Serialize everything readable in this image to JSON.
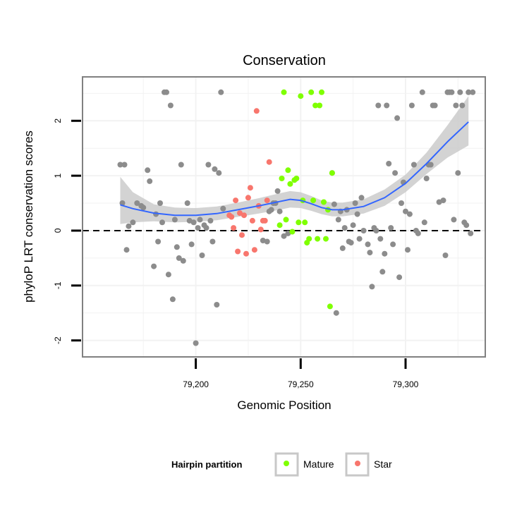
{
  "chart_data": {
    "type": "scatter",
    "title": "Conservation",
    "xlabel": "Genomic Position",
    "ylabel": "phyloP LRT conservation scores",
    "xlim": [
      79146,
      79338
    ],
    "ylim": [
      -2.3,
      2.8
    ],
    "xticks": [
      79200,
      79250,
      79300
    ],
    "xtick_labels": [
      "79,200",
      "79,250",
      "79,300"
    ],
    "yticks": [
      -2,
      -1,
      0,
      1,
      2
    ],
    "ytick_labels": [
      "-2",
      "-1",
      "0",
      "1",
      "2"
    ],
    "grid": true,
    "reference_line": {
      "y": 0,
      "style": "dashed"
    },
    "legend": {
      "title": "Hairpin partition",
      "position": "bottom",
      "entries": [
        {
          "name": "Mature",
          "color": "#7FFF00"
        },
        {
          "name": "Star",
          "color": "#F8766D"
        }
      ]
    },
    "colors": {
      "other": "#8C8C8C",
      "mature": "#7FFF00",
      "star": "#F8766D",
      "smooth": "#3366FF",
      "ribbon": "#C8C8C8",
      "panel_border": "#808080",
      "grid": "#F2F2F2"
    },
    "series": [
      {
        "group": "other",
        "x": [
          79164,
          79165,
          79166,
          79167,
          79168,
          79170,
          79172,
          79174,
          79175,
          79177,
          79178,
          79180,
          79181,
          79182,
          79183,
          79184,
          79185,
          79186,
          79187,
          79188,
          79189,
          79190,
          79191,
          79192,
          79193,
          79194,
          79196,
          79197,
          79198,
          79199,
          79200,
          79201,
          79202,
          79203,
          79204,
          79205,
          79206,
          79207,
          79208,
          79209,
          79210,
          79211,
          79212,
          79213,
          79232,
          79234,
          79235,
          79236,
          79237,
          79238,
          79239,
          79240,
          79242,
          79244,
          79265,
          79266,
          79267,
          79268,
          79269,
          79270,
          79271,
          79272,
          79273,
          79274,
          79275,
          79276,
          79277,
          79278,
          79279,
          79280,
          79282,
          79283,
          79284,
          79285,
          79286,
          79287,
          79288,
          79289,
          79290,
          79291,
          79292,
          79293,
          79294,
          79295,
          79296,
          79297,
          79298,
          79299,
          79300,
          79301,
          79302,
          79303,
          79304,
          79305,
          79306,
          79308,
          79309,
          79310,
          79311,
          79312,
          79313,
          79314,
          79316,
          79318,
          79319,
          79320,
          79321,
          79322,
          79323,
          79324,
          79325,
          79326,
          79327,
          79328,
          79329,
          79330,
          79331,
          79332
        ],
        "y": [
          1.2,
          0.5,
          1.2,
          -0.35,
          0.08,
          0.15,
          0.5,
          0.45,
          0.42,
          1.1,
          0.9,
          -0.65,
          0.3,
          -0.2,
          0.5,
          0.15,
          2.52,
          2.52,
          -0.8,
          2.28,
          -1.25,
          0.2,
          -0.3,
          -0.5,
          1.2,
          -0.55,
          0.5,
          0.18,
          -0.25,
          0.15,
          -2.05,
          0.05,
          0.2,
          -0.45,
          0.1,
          0.05,
          1.2,
          0.18,
          -0.2,
          1.12,
          -1.35,
          1.05,
          2.52,
          0.4,
          -0.18,
          -0.2,
          0.35,
          0.38,
          0.5,
          0.5,
          0.72,
          0.35,
          -0.1,
          -0.05,
          1.05,
          0.48,
          -1.5,
          0.2,
          0.35,
          -0.32,
          0.05,
          0.38,
          -0.2,
          -0.22,
          0.1,
          0.5,
          0.3,
          -0.15,
          0.6,
          0.0,
          -0.25,
          -0.4,
          -1.02,
          0.05,
          0.0,
          2.28,
          -0.15,
          -0.75,
          -0.42,
          2.28,
          1.22,
          0.05,
          -0.25,
          1.05,
          2.05,
          -0.85,
          0.5,
          0.88,
          0.35,
          -0.35,
          0.3,
          2.28,
          1.2,
          0.0,
          -0.05,
          2.52,
          0.15,
          0.95,
          1.2,
          1.2,
          2.28,
          2.28,
          0.52,
          0.55,
          -0.45,
          2.52,
          2.52,
          2.52,
          0.2,
          2.28,
          1.05,
          2.52,
          2.28,
          0.15,
          0.1,
          2.52,
          -0.05,
          2.52
        ]
      },
      {
        "group": "mature",
        "x": [
          79240,
          79241,
          79242,
          79243,
          79244,
          79245,
          79246,
          79247,
          79248,
          79249,
          79250,
          79251,
          79252,
          79253,
          79254,
          79255,
          79256,
          79257,
          79258,
          79259,
          79260,
          79261,
          79262,
          79263,
          79264,
          79265
        ],
        "y": [
          0.1,
          0.95,
          2.52,
          0.2,
          1.1,
          0.85,
          -0.02,
          0.92,
          0.95,
          0.15,
          2.45,
          0.55,
          0.15,
          -0.22,
          -0.15,
          2.52,
          0.55,
          2.28,
          -0.15,
          2.28,
          2.52,
          0.52,
          -0.15,
          0.38,
          -1.38,
          1.05
        ]
      },
      {
        "group": "star",
        "x": [
          79216,
          79217,
          79218,
          79219,
          79220,
          79221,
          79222,
          79223,
          79224,
          79225,
          79226,
          79227,
          79228,
          79229,
          79230,
          79231,
          79232,
          79233,
          79234,
          79235
        ],
        "y": [
          0.28,
          0.25,
          0.05,
          0.55,
          -0.38,
          0.32,
          -0.08,
          0.28,
          -0.42,
          0.6,
          0.78,
          0.18,
          -0.35,
          2.18,
          0.45,
          0.02,
          0.18,
          0.18,
          0.55,
          1.25
        ]
      }
    ],
    "smooth": {
      "x": [
        79164,
        79170,
        79180,
        79190,
        79200,
        79210,
        79220,
        79230,
        79240,
        79245,
        79250,
        79255,
        79260,
        79265,
        79270,
        79280,
        79290,
        79300,
        79310,
        79320,
        79330
      ],
      "y": [
        0.47,
        0.4,
        0.32,
        0.28,
        0.28,
        0.31,
        0.38,
        0.45,
        0.53,
        0.57,
        0.55,
        0.49,
        0.42,
        0.38,
        0.38,
        0.44,
        0.6,
        0.86,
        1.22,
        1.62,
        1.98
      ],
      "lower": [
        0.12,
        0.15,
        0.17,
        0.15,
        0.16,
        0.19,
        0.25,
        0.31,
        0.38,
        0.42,
        0.41,
        0.36,
        0.3,
        0.26,
        0.26,
        0.31,
        0.45,
        0.7,
        1.03,
        1.33,
        1.55
      ],
      "upper": [
        0.98,
        0.7,
        0.48,
        0.42,
        0.41,
        0.44,
        0.51,
        0.59,
        0.68,
        0.72,
        0.7,
        0.63,
        0.55,
        0.51,
        0.51,
        0.57,
        0.75,
        1.02,
        1.42,
        1.92,
        2.45
      ]
    }
  }
}
